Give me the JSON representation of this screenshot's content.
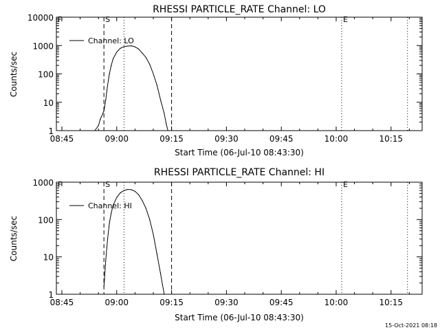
{
  "chart_data": [
    {
      "type": "line",
      "title": "RHESSI PARTICLE_RATE Channel: LO",
      "xlabel": "Start Time (06-Jul-10 08:43:30)",
      "ylabel": "Counts/sec",
      "yscale": "log",
      "xlim": [
        "08:43:30",
        "10:23:30"
      ],
      "ylim": [
        1,
        10000
      ],
      "x_tick_labels": [
        "08:45",
        "09:00",
        "09:15",
        "09:30",
        "09:45",
        "10:00",
        "10:15"
      ],
      "y_tick_labels": [
        "1",
        "10",
        "100",
        "1000",
        "10000"
      ],
      "grid": false,
      "legend": "top-left",
      "series": [
        {
          "name": "Channel: LO",
          "x": [
            "08:54:00",
            "08:55:00",
            "08:55:30",
            "08:56:00",
            "08:56:30",
            "08:57:00",
            "08:57:30",
            "08:58:00",
            "08:58:30",
            "08:59:00",
            "09:00:00",
            "09:01:00",
            "09:02:00",
            "09:03:00",
            "09:04:00",
            "09:05:00",
            "09:06:00",
            "09:07:00",
            "09:08:00",
            "09:09:00",
            "09:10:00",
            "09:11:00",
            "09:12:00",
            "09:13:00",
            "09:13:30",
            "09:14:00"
          ],
          "values": [
            1,
            1.5,
            2.5,
            3.5,
            5,
            12,
            40,
            100,
            200,
            340,
            590,
            800,
            920,
            960,
            980,
            900,
            750,
            540,
            380,
            220,
            100,
            40,
            12,
            4,
            1.8,
            1
          ]
        }
      ],
      "markers": [
        {
          "label": "F",
          "x": "08:43:30",
          "style": "dotted"
        },
        {
          "label": "S",
          "x": "08:56:30",
          "style": "dashed"
        },
        {
          "label": "",
          "x": "09:02:00",
          "style": "dotted"
        },
        {
          "label": "",
          "x": "09:15:00",
          "style": "dashed"
        },
        {
          "label": "E",
          "x": "10:01:30",
          "style": "dotted"
        },
        {
          "label": "",
          "x": "10:19:30",
          "style": "dotted"
        }
      ]
    },
    {
      "type": "line",
      "title": "RHESSI PARTICLE_RATE Channel: HI",
      "xlabel": "Start Time (06-Jul-10 08:43:30)",
      "ylabel": "Counts/sec",
      "yscale": "log",
      "xlim": [
        "08:43:30",
        "10:23:30"
      ],
      "ylim": [
        1,
        1000
      ],
      "x_tick_labels": [
        "08:45",
        "09:00",
        "09:15",
        "09:30",
        "09:45",
        "10:00",
        "10:15"
      ],
      "y_tick_labels": [
        "1",
        "10",
        "100",
        "1000"
      ],
      "grid": false,
      "legend": "top-left",
      "series": [
        {
          "name": "Channel: HI",
          "x": [
            "08:56:30",
            "08:57:00",
            "08:57:30",
            "08:58:00",
            "08:58:30",
            "08:59:00",
            "09:00:00",
            "09:01:00",
            "09:02:00",
            "09:03:00",
            "09:04:00",
            "09:05:00",
            "09:06:00",
            "09:07:00",
            "09:08:00",
            "09:09:00",
            "09:10:00",
            "09:11:00",
            "09:12:00",
            "09:12:30",
            "09:13:00"
          ],
          "values": [
            1.6,
            8,
            30,
            80,
            150,
            240,
            390,
            520,
            600,
            640,
            630,
            570,
            460,
            320,
            200,
            100,
            40,
            12,
            3.5,
            1.8,
            1
          ]
        }
      ],
      "markers": [
        {
          "label": "F",
          "x": "08:43:30",
          "style": "dotted"
        },
        {
          "label": "S",
          "x": "08:56:30",
          "style": "dashed"
        },
        {
          "label": "",
          "x": "09:02:00",
          "style": "dotted"
        },
        {
          "label": "",
          "x": "09:15:00",
          "style": "dashed"
        },
        {
          "label": "E",
          "x": "10:01:30",
          "style": "dotted"
        },
        {
          "label": "",
          "x": "10:19:30",
          "style": "dotted"
        }
      ]
    }
  ],
  "footer": {
    "timestamp": "15-Oct-2021 08:18"
  }
}
